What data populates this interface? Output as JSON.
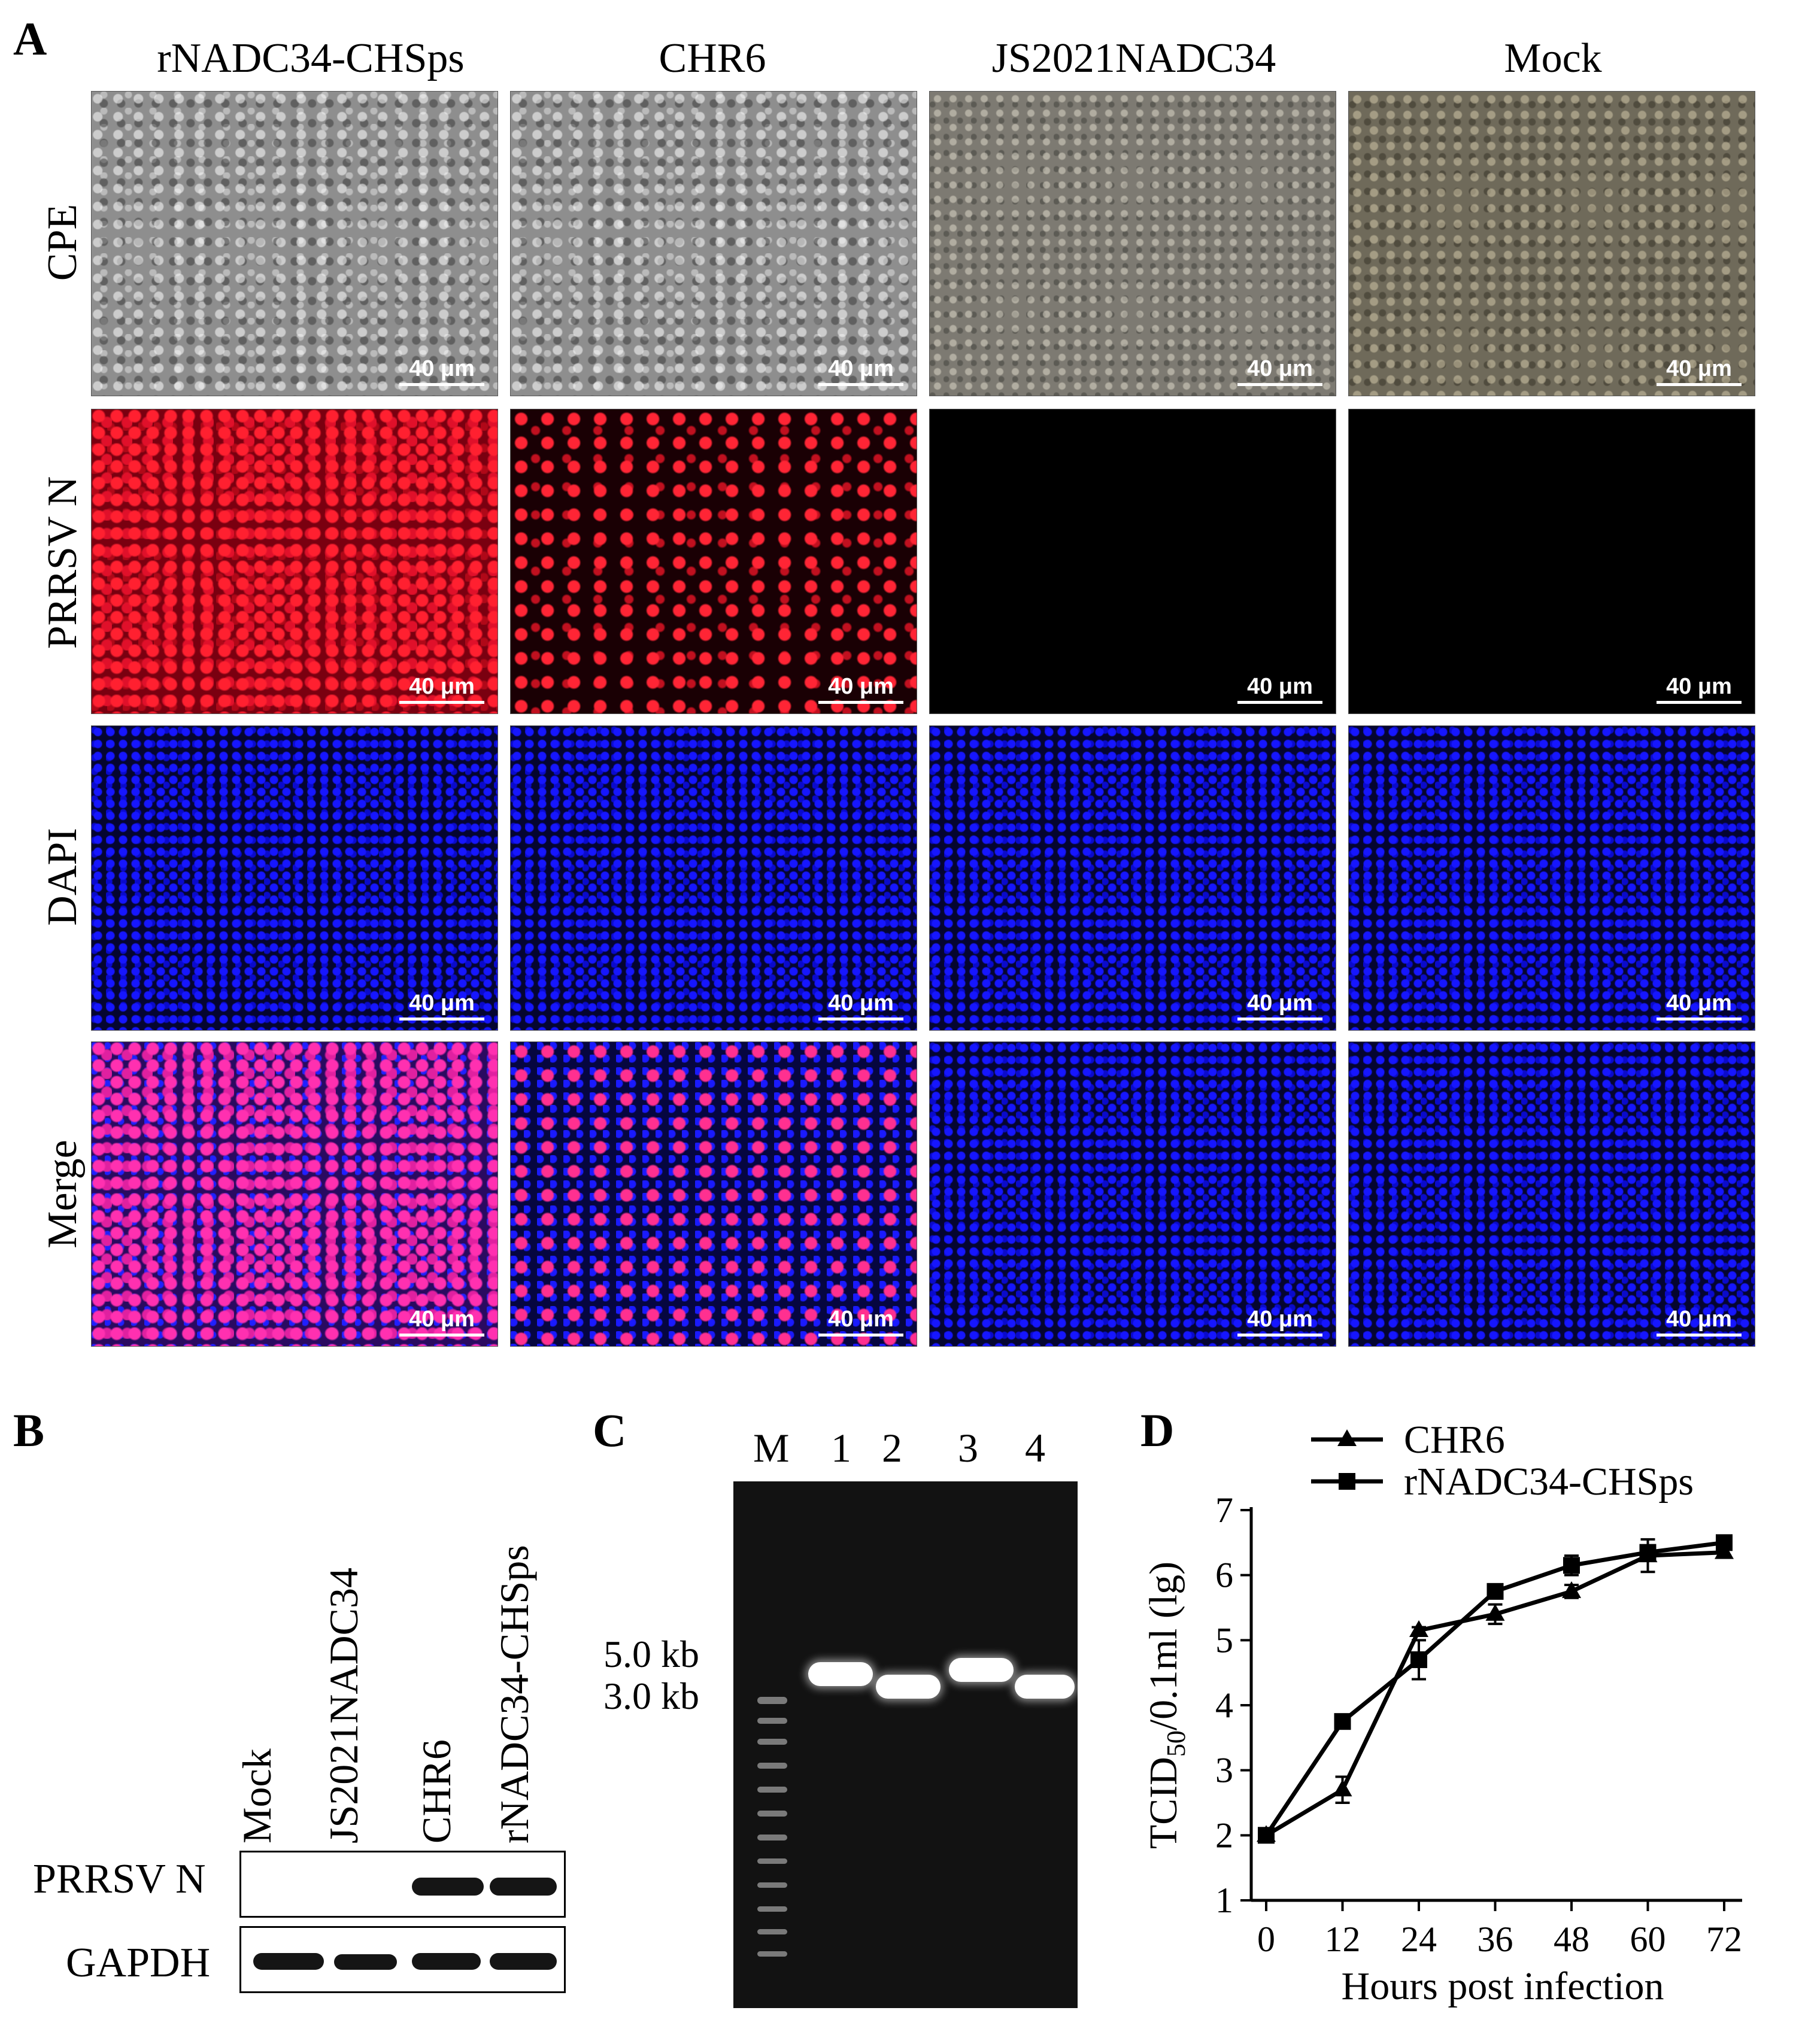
{
  "panel_labels": {
    "a": "A",
    "b": "B",
    "c": "C",
    "d": "D"
  },
  "panel_a": {
    "columns": [
      "rNADC34-CHSps",
      "CHR6",
      "JS2021NADC34",
      "Mock"
    ],
    "rows": [
      "CPE",
      "PRRSV N",
      "DAPI",
      "Merge"
    ],
    "scale_bar": "40 μm"
  },
  "panel_b": {
    "lanes": [
      "Mock",
      "JS2021NADC34",
      "CHR6",
      "rNADC34-CHSps"
    ],
    "rows": [
      "PRRSV N",
      "GAPDH"
    ]
  },
  "panel_c": {
    "lanes": [
      "M",
      "1",
      "2",
      "3",
      "4"
    ],
    "markers": [
      "5.0 kb",
      "3.0 kb"
    ]
  },
  "chart_data": {
    "type": "line",
    "title": "",
    "xlabel": "Hours post infection",
    "ylabel_main": "TCID",
    "ylabel_sub": "50",
    "ylabel_rest": "/0.1ml (lg)",
    "x": [
      0,
      12,
      24,
      36,
      48,
      60,
      72
    ],
    "xlim": [
      0,
      72
    ],
    "ylim": [
      1,
      7
    ],
    "yticks": [
      1,
      2,
      3,
      4,
      5,
      6,
      7
    ],
    "legend_position": "top",
    "series": [
      {
        "name": "CHR6",
        "marker": "triangle",
        "values": [
          2.0,
          2.7,
          5.15,
          5.4,
          5.75,
          6.3,
          6.35
        ],
        "errors": [
          0.05,
          0.2,
          0.05,
          0.15,
          0.1,
          0.25,
          0.05
        ]
      },
      {
        "name": "rNADC34-CHSps",
        "marker": "square",
        "values": [
          2.0,
          3.75,
          4.7,
          5.75,
          6.15,
          6.35,
          6.5
        ],
        "errors": [
          0.05,
          0.1,
          0.3,
          0.05,
          0.15,
          0.1,
          0.05
        ]
      }
    ]
  }
}
